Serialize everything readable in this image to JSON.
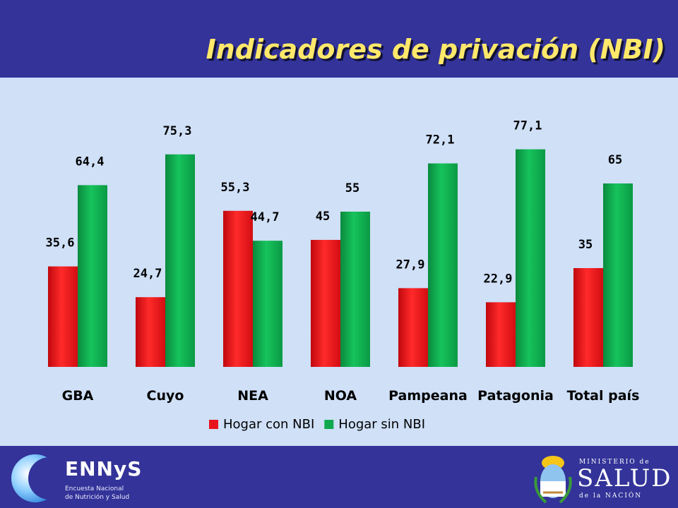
{
  "header": {
    "title": "Indicadores de privación (NBI)"
  },
  "chart_data": {
    "type": "bar",
    "categories": [
      "GBA",
      "Cuyo",
      "NEA",
      "NOA",
      "Pampeana",
      "Patagonia",
      "Total país"
    ],
    "series": [
      {
        "name": "Hogar con NBI",
        "color": "#e8141b",
        "values": [
          35.6,
          24.7,
          55.3,
          45,
          27.9,
          22.9,
          35
        ]
      },
      {
        "name": "Hogar sin NBI",
        "color": "#11a94f",
        "values": [
          64.4,
          75.3,
          44.7,
          55,
          72.1,
          77.1,
          65
        ]
      }
    ],
    "data_labels": [
      [
        "35,6",
        "24,7",
        "55,3",
        "45",
        "27,9",
        "22,9",
        "35"
      ],
      [
        "64,4",
        "75,3",
        "44,7",
        "55",
        "72,1",
        "77,1",
        "65"
      ]
    ],
    "ylim": [
      0,
      100
    ],
    "grid": false,
    "legend_position": "bottom-center"
  },
  "footer": {
    "left_logo": {
      "name": "ENNyS",
      "line1": "Encuesta Nacional",
      "line2": "de Nutrición y Salud"
    },
    "right_logo": {
      "top": "MINISTERIO de",
      "main": "SALUD",
      "bottom": "de la NACIÓN"
    }
  }
}
